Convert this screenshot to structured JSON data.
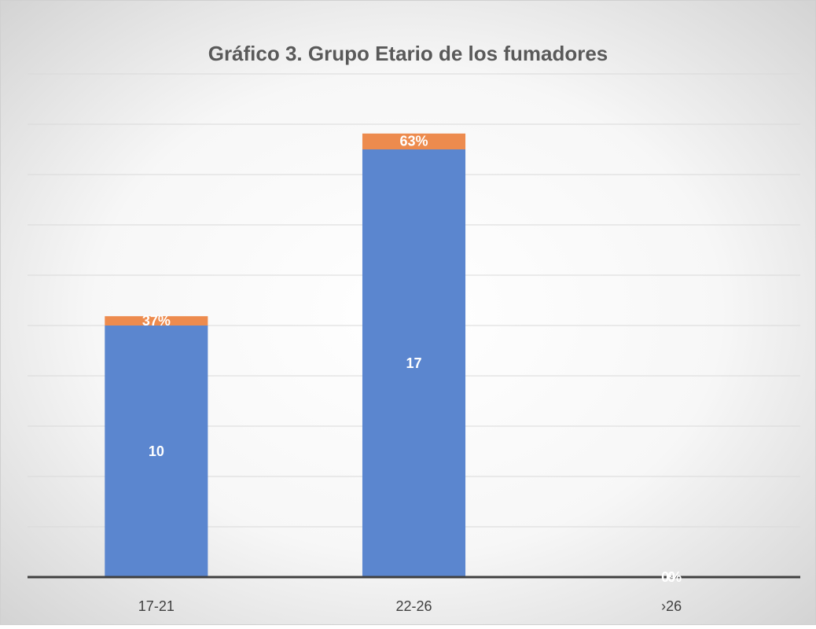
{
  "chart_data": {
    "type": "stacked-bar",
    "title": "Gráfico 3. Grupo Etario de los fumadores",
    "categories": [
      "17-21",
      "22-26",
      "›26"
    ],
    "series": [
      {
        "color": "#5b86cf",
        "values": [
          10,
          17,
          0
        ],
        "value_labels": [
          "10",
          "17",
          "0"
        ]
      },
      {
        "color": "#ed8b4e",
        "values": [
          0.37,
          0.63,
          0
        ],
        "value_labels": [
          "37%",
          "63%",
          "0%"
        ]
      }
    ],
    "ylim": [
      0,
      20
    ],
    "yticks": [
      0,
      2,
      4,
      6,
      8,
      10,
      12,
      14,
      16,
      18,
      20
    ],
    "grid": true
  }
}
